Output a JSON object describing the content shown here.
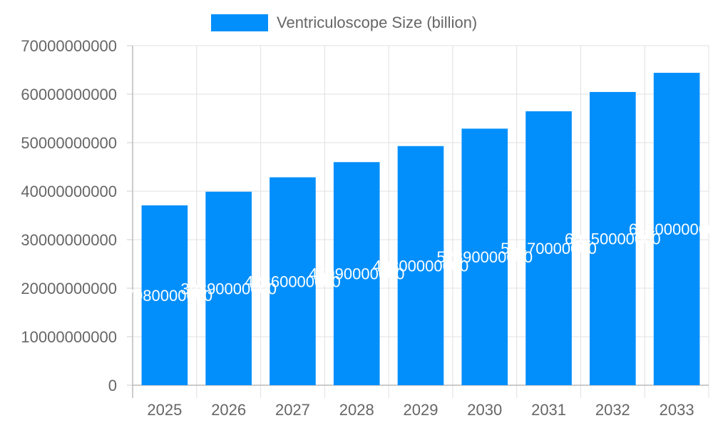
{
  "chart_data": {
    "type": "bar",
    "title": "",
    "xlabel": "",
    "ylabel": "",
    "categories": [
      "2025",
      "2026",
      "2027",
      "2028",
      "2029",
      "2030",
      "2031",
      "2032",
      "2033"
    ],
    "series": [
      {
        "name": "Ventriculoscope Size (billion)",
        "color": "#038ffb",
        "values": [
          37080000000,
          39890000000,
          42860000000,
          45990000000,
          49300000000,
          52890000000,
          56470000000,
          60450000000,
          64400000000
        ]
      }
    ],
    "ylim": [
      0,
      70000000000
    ],
    "yticks": [
      0,
      10000000000,
      20000000000,
      30000000000,
      40000000000,
      50000000000,
      60000000000,
      70000000000
    ],
    "grid": true,
    "legend_position": "top",
    "data_labels": true
  },
  "legend": {
    "label": "Ventriculoscope Size (billion)"
  }
}
